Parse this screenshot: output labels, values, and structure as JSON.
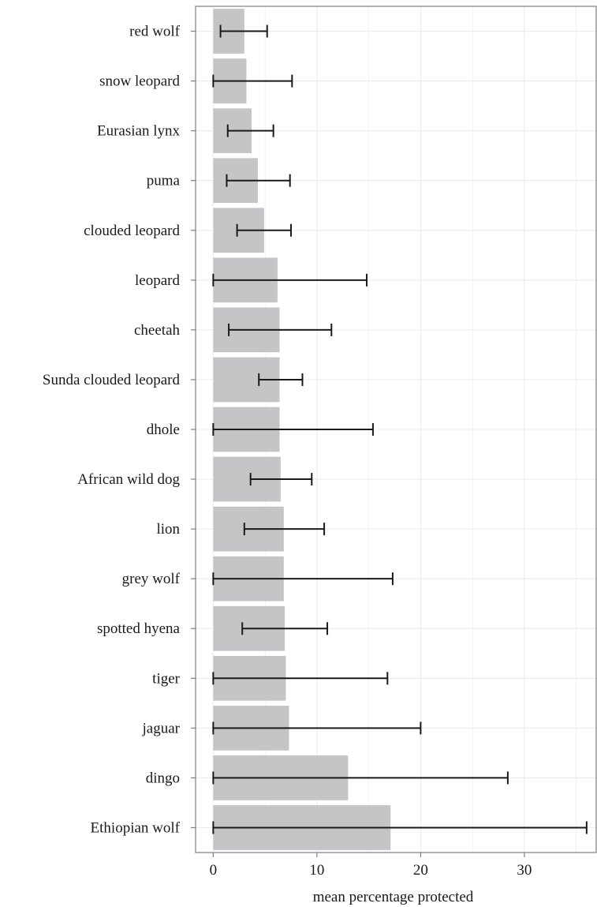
{
  "chart_data": {
    "type": "bar",
    "orientation": "horizontal",
    "categories": [
      "red wolf",
      "snow leopard",
      "Eurasian lynx",
      "puma",
      "clouded leopard",
      "leopard",
      "cheetah",
      "Sunda clouded leopard",
      "dhole",
      "African wild dog",
      "lion",
      "grey wolf",
      "spotted hyena",
      "tiger",
      "jaguar",
      "dingo",
      "Ethiopian wolf"
    ],
    "values": [
      3.0,
      3.2,
      3.7,
      4.3,
      4.9,
      6.2,
      6.4,
      6.4,
      6.4,
      6.5,
      6.8,
      6.8,
      6.9,
      7.0,
      7.3,
      13.0,
      17.1
    ],
    "error_low": [
      0.7,
      0.0,
      1.4,
      1.3,
      2.3,
      0.0,
      1.5,
      4.4,
      0.0,
      3.6,
      3.0,
      0.0,
      2.8,
      0.0,
      0.0,
      0.0,
      0.0
    ],
    "error_high": [
      5.2,
      7.6,
      5.8,
      7.4,
      7.5,
      14.8,
      11.4,
      8.6,
      15.4,
      9.5,
      10.7,
      17.3,
      11.0,
      16.8,
      20.0,
      28.4,
      36.0
    ],
    "xlabel": "mean percentage protected",
    "ylabel": "",
    "xlim": [
      -1.7,
      37.0
    ],
    "xticks": [
      0,
      10,
      20,
      30
    ],
    "grid": true,
    "colors": {
      "bar": "#c4c5c7",
      "error_bar": "#1a1a1a",
      "grid": "#ececec",
      "panel_border": "#7f7f7f",
      "text": "#1a1a1a"
    }
  }
}
